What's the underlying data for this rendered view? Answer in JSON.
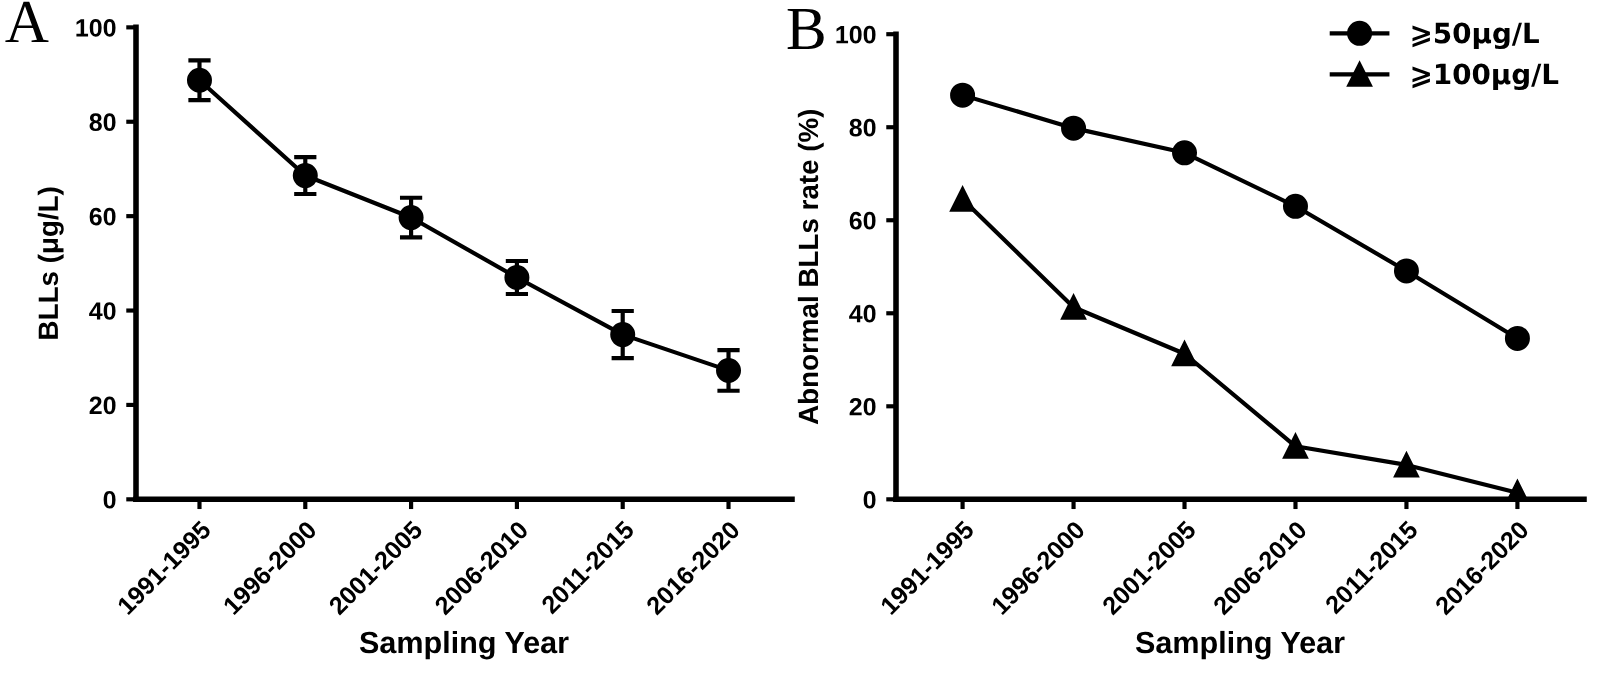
{
  "chart_data": [
    {
      "type": "line",
      "title": "A",
      "xlabel": "Sampling Year",
      "ylabel": "BLLs (μg/L)",
      "categories": [
        "1991-1995",
        "1996-2000",
        "2001-2005",
        "2006-2010",
        "2011-2015",
        "2016-2020"
      ],
      "series": [
        {
          "color": "#000000",
          "values": [
            88.8,
            68.6,
            59.7,
            47.0,
            34.9,
            27.3
          ],
          "errors": [
            4.2,
            3.9,
            4.2,
            3.5,
            5.0,
            4.3
          ]
        }
      ],
      "ylim": [
        0,
        100
      ],
      "yticks": [
        0,
        20,
        40,
        60,
        80,
        100
      ],
      "marker": "circle",
      "grid": false,
      "legend": false
    },
    {
      "type": "line",
      "title": "B",
      "xlabel": "Sampling Year",
      "ylabel": "Abnormal BLLs rate (%)",
      "categories": [
        "1991-1995",
        "1996-2000",
        "2001-2005",
        "2006-2010",
        "2011-2015",
        "2016-2020"
      ],
      "series": [
        {
          "name": "⩾50μg/L",
          "color": "#000000",
          "marker": "circle",
          "values": [
            86.9,
            79.8,
            74.5,
            63.0,
            49.1,
            34.6
          ]
        },
        {
          "name": "⩾100μg/L",
          "color": "#000000",
          "marker": "triangle",
          "values": [
            64.5,
            41.3,
            31.3,
            11.4,
            7.4,
            1.4
          ]
        }
      ],
      "ylim": [
        0,
        100
      ],
      "yticks": [
        0,
        20,
        40,
        60,
        80,
        100
      ],
      "grid": false,
      "legend": "top right"
    }
  ]
}
